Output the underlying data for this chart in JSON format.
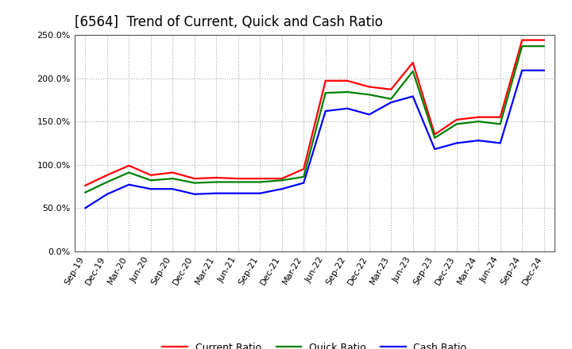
{
  "title": "[6564]  Trend of Current, Quick and Cash Ratio",
  "x_labels": [
    "Sep-19",
    "Dec-19",
    "Mar-20",
    "Jun-20",
    "Sep-20",
    "Dec-20",
    "Mar-21",
    "Jun-21",
    "Sep-21",
    "Dec-21",
    "Mar-22",
    "Jun-22",
    "Sep-22",
    "Dec-22",
    "Mar-23",
    "Jun-23",
    "Sep-23",
    "Dec-23",
    "Mar-24",
    "Jun-24",
    "Sep-24",
    "Dec-24"
  ],
  "current_ratio": [
    0.76,
    0.88,
    0.99,
    0.88,
    0.91,
    0.84,
    0.85,
    0.84,
    0.84,
    0.84,
    0.95,
    1.97,
    1.97,
    1.9,
    1.87,
    2.18,
    1.35,
    1.52,
    1.55,
    1.55,
    2.44,
    2.44
  ],
  "quick_ratio": [
    0.68,
    0.8,
    0.91,
    0.82,
    0.84,
    0.79,
    0.8,
    0.8,
    0.8,
    0.82,
    0.86,
    1.83,
    1.84,
    1.81,
    1.76,
    2.08,
    1.31,
    1.47,
    1.5,
    1.47,
    2.37,
    2.37
  ],
  "cash_ratio": [
    0.5,
    0.66,
    0.77,
    0.72,
    0.72,
    0.66,
    0.67,
    0.67,
    0.67,
    0.72,
    0.79,
    1.62,
    1.65,
    1.58,
    1.72,
    1.79,
    1.18,
    1.25,
    1.28,
    1.25,
    2.09,
    2.09
  ],
  "current_color": "#FF0000",
  "quick_color": "#008000",
  "cash_color": "#0000FF",
  "ylim": [
    0.0,
    2.5
  ],
  "yticks": [
    0.0,
    0.5,
    1.0,
    1.5,
    2.0,
    2.5
  ],
  "background_color": "#ffffff",
  "grid_color": "#aaaaaa",
  "title_fontsize": 12,
  "legend_fontsize": 9,
  "tick_fontsize": 8
}
